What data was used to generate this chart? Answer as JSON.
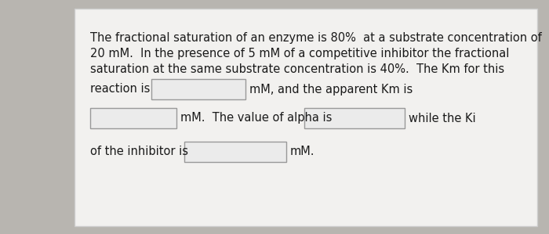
{
  "bg_color": "#b8b5b0",
  "card_color": "#f2f1ef",
  "card_border": "#cccccc",
  "box_border": "#999999",
  "box_fill": "#ebebeb",
  "text_color": "#1a1a1a",
  "font_size": 10.5,
  "line1": "The fractional saturation of an enzyme is 80%  at a substrate concentration of",
  "line2": "20 mM.  In the presence of 5 mM of a competitive inhibitor the fractional",
  "line3": "saturation at the same substrate concentration is 40%.  The Km for this",
  "row1_left": "reaction is",
  "row1_right": "mM, and the apparent Km is",
  "row2_right_text": "mM.  The value of alpha is",
  "row2_end": "while the Ki",
  "row3_left": "of the inhibitor is",
  "row3_right": "mM."
}
